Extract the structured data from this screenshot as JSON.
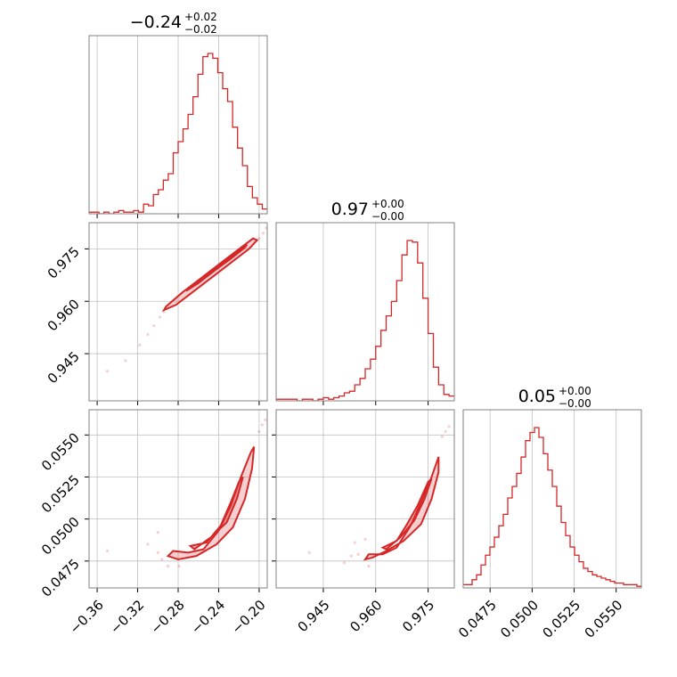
{
  "colors": {
    "accent": "#d62728",
    "frame": "#808080",
    "grid": "#c0c0c0"
  },
  "chart_data": {
    "type": "corner",
    "grid": true,
    "parameters": [
      {
        "title_main": "−0.24",
        "title_sup": "+0.02",
        "title_sub": "−0.02",
        "range": [
          -0.368,
          -0.192
        ],
        "ticks": [
          -0.36,
          -0.32,
          -0.28,
          -0.24,
          -0.2
        ],
        "tick_labels": [
          "−0.36",
          "−0.32",
          "−0.28",
          "−0.24",
          "−0.20"
        ]
      },
      {
        "title_main": "0.97",
        "title_sup": "+0.00",
        "title_sub": "−0.00",
        "range": [
          0.9315,
          0.9825
        ],
        "ticks": [
          0.945,
          0.96,
          0.975
        ],
        "tick_labels": [
          "0.945",
          "0.960",
          "0.975"
        ]
      },
      {
        "title_main": "0.05",
        "title_sup": "+0.00",
        "title_sub": "−0.00",
        "range": [
          0.0459,
          0.0565
        ],
        "ticks": [
          0.0475,
          0.05,
          0.0525,
          0.055
        ],
        "tick_labels": [
          "0.0475",
          "0.0500",
          "0.0525",
          "0.0550"
        ]
      }
    ],
    "histograms": [
      {
        "param": 0,
        "counts": [
          0.01,
          0.01,
          0.0,
          0.01,
          0.0,
          0.01,
          0.02,
          0.01,
          0.01,
          0.02,
          0.01,
          0.06,
          0.05,
          0.12,
          0.15,
          0.21,
          0.25,
          0.38,
          0.45,
          0.53,
          0.62,
          0.73,
          0.87,
          0.98,
          1.0,
          0.97,
          0.88,
          0.78,
          0.7,
          0.54,
          0.41,
          0.3,
          0.17,
          0.1,
          0.06,
          0.03
        ]
      },
      {
        "param": 1,
        "counts": [
          0.01,
          0.01,
          0.01,
          0.01,
          0.0,
          0.01,
          0.01,
          0.0,
          0.01,
          0.02,
          0.01,
          0.02,
          0.03,
          0.05,
          0.06,
          0.1,
          0.14,
          0.2,
          0.26,
          0.34,
          0.44,
          0.53,
          0.62,
          0.75,
          0.91,
          1.0,
          0.99,
          0.86,
          0.64,
          0.42,
          0.21,
          0.1,
          0.04,
          0.03
        ]
      },
      {
        "param": 2,
        "counts": [
          0.02,
          0.02,
          0.05,
          0.08,
          0.14,
          0.2,
          0.25,
          0.31,
          0.38,
          0.45,
          0.55,
          0.62,
          0.7,
          0.8,
          0.9,
          0.95,
          0.98,
          0.92,
          0.82,
          0.72,
          0.62,
          0.5,
          0.4,
          0.32,
          0.25,
          0.2,
          0.16,
          0.12,
          0.1,
          0.08,
          0.07,
          0.06,
          0.05,
          0.04,
          0.03,
          0.03,
          0.02,
          0.02,
          0.02,
          0.01
        ]
      }
    ],
    "pairs": [
      {
        "x_param": 0,
        "y_param": 1,
        "contour_outer": [
          [
            -0.292,
            0.9585
          ],
          [
            -0.276,
            0.9625
          ],
          [
            -0.258,
            0.9665
          ],
          [
            -0.24,
            0.9705
          ],
          [
            -0.222,
            0.9745
          ],
          [
            -0.206,
            0.978
          ],
          [
            -0.202,
            0.9775
          ],
          [
            -0.21,
            0.975
          ],
          [
            -0.228,
            0.971
          ],
          [
            -0.246,
            0.967
          ],
          [
            -0.264,
            0.963
          ],
          [
            -0.282,
            0.959
          ],
          [
            -0.294,
            0.9575
          ]
        ],
        "contour_inner": [
          [
            -0.27,
            0.9635
          ],
          [
            -0.254,
            0.9668
          ],
          [
            -0.238,
            0.9705
          ],
          [
            -0.222,
            0.974
          ],
          [
            -0.212,
            0.9762
          ],
          [
            -0.214,
            0.9754
          ],
          [
            -0.228,
            0.9722
          ],
          [
            -0.244,
            0.9688
          ],
          [
            -0.26,
            0.9652
          ],
          [
            -0.272,
            0.963
          ]
        ],
        "scatter": [
          [
            -0.35,
            0.94
          ],
          [
            -0.332,
            0.943
          ],
          [
            -0.318,
            0.9475
          ],
          [
            -0.31,
            0.9505
          ],
          [
            -0.304,
            0.953
          ],
          [
            -0.298,
            0.9555
          ],
          [
            -0.294,
            0.957
          ],
          [
            -0.2,
            0.978
          ],
          [
            -0.196,
            0.9795
          ],
          [
            -0.193,
            0.981
          ]
        ]
      },
      {
        "x_param": 0,
        "y_param": 2,
        "contour_outer": [
          [
            -0.285,
            0.0481
          ],
          [
            -0.27,
            0.048
          ],
          [
            -0.255,
            0.0482
          ],
          [
            -0.24,
            0.0493
          ],
          [
            -0.228,
            0.0508
          ],
          [
            -0.218,
            0.0525
          ],
          [
            -0.208,
            0.054
          ],
          [
            -0.205,
            0.0543
          ],
          [
            -0.207,
            0.053
          ],
          [
            -0.214,
            0.0512
          ],
          [
            -0.226,
            0.0495
          ],
          [
            -0.242,
            0.0485
          ],
          [
            -0.262,
            0.0478
          ],
          [
            -0.28,
            0.0476
          ],
          [
            -0.29,
            0.0478
          ]
        ],
        "contour_inner": [
          [
            -0.268,
            0.0484
          ],
          [
            -0.252,
            0.0486
          ],
          [
            -0.238,
            0.0496
          ],
          [
            -0.228,
            0.051
          ],
          [
            -0.22,
            0.0522
          ],
          [
            -0.216,
            0.0525
          ],
          [
            -0.222,
            0.0512
          ],
          [
            -0.232,
            0.0498
          ],
          [
            -0.248,
            0.0489
          ],
          [
            -0.264,
            0.0482
          ]
        ],
        "scatter": [
          [
            -0.3,
            0.0492
          ],
          [
            -0.296,
            0.0476
          ],
          [
            -0.31,
            0.0485
          ],
          [
            -0.29,
            0.0472
          ],
          [
            -0.3,
            0.048
          ],
          [
            -0.2,
            0.0552
          ],
          [
            -0.197,
            0.0556
          ],
          [
            -0.194,
            0.0559
          ],
          [
            -0.35,
            0.0481
          ],
          [
            -0.279,
            0.0472
          ]
        ]
      },
      {
        "x_param": 1,
        "y_param": 2,
        "contour_outer": [
          [
            0.958,
            0.0479
          ],
          [
            0.962,
            0.0479
          ],
          [
            0.966,
            0.0483
          ],
          [
            0.97,
            0.0496
          ],
          [
            0.973,
            0.051
          ],
          [
            0.976,
            0.0525
          ],
          [
            0.978,
            0.0537
          ],
          [
            0.978,
            0.0528
          ],
          [
            0.976,
            0.0512
          ],
          [
            0.973,
            0.0497
          ],
          [
            0.968,
            0.0487
          ],
          [
            0.963,
            0.0481
          ],
          [
            0.959,
            0.0477
          ],
          [
            0.957,
            0.0476
          ]
        ],
        "contour_inner": [
          [
            0.962,
            0.0483
          ],
          [
            0.966,
            0.0487
          ],
          [
            0.969,
            0.0497
          ],
          [
            0.972,
            0.0508
          ],
          [
            0.975,
            0.0522
          ],
          [
            0.976,
            0.0524
          ],
          [
            0.974,
            0.0512
          ],
          [
            0.971,
            0.0499
          ],
          [
            0.967,
            0.0489
          ],
          [
            0.963,
            0.0482
          ]
        ],
        "scatter": [
          [
            0.955,
            0.0479
          ],
          [
            0.953,
            0.0478
          ],
          [
            0.957,
            0.0488
          ],
          [
            0.958,
            0.0472
          ],
          [
            0.951,
            0.0474
          ],
          [
            0.979,
            0.0549
          ],
          [
            0.98,
            0.0552
          ],
          [
            0.981,
            0.0555
          ],
          [
            0.941,
            0.048
          ],
          [
            0.954,
            0.0486
          ]
        ]
      }
    ]
  }
}
